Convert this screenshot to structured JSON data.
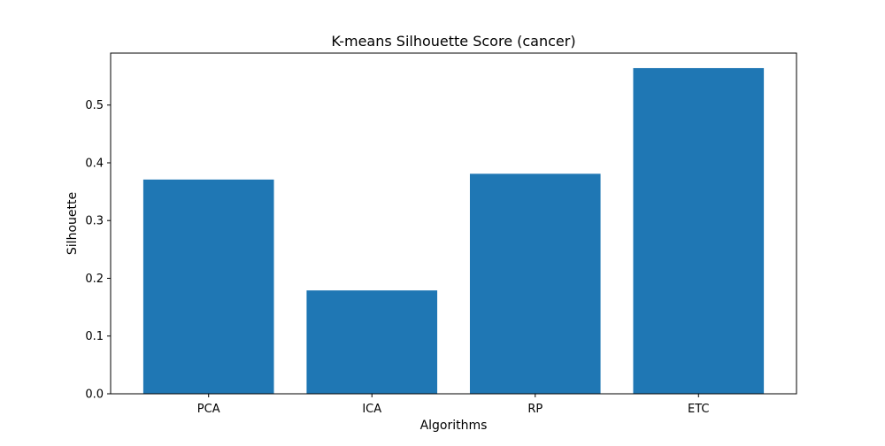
{
  "chart_data": {
    "type": "bar",
    "title": "K-means Silhouette Score (cancer)",
    "xlabel": "Algorithms",
    "ylabel": "Silhouette",
    "categories": [
      "PCA",
      "ICA",
      "RP",
      "ETC"
    ],
    "values": [
      0.371,
      0.179,
      0.381,
      0.564
    ],
    "ylim": [
      0,
      0.59
    ],
    "yticks": [
      0.0,
      0.1,
      0.2,
      0.3,
      0.4,
      0.5
    ],
    "ytick_labels": [
      "0.0",
      "0.1",
      "0.2",
      "0.3",
      "0.4",
      "0.5"
    ],
    "grid": false,
    "legend": "none",
    "bar_color": "#1f77b4"
  }
}
